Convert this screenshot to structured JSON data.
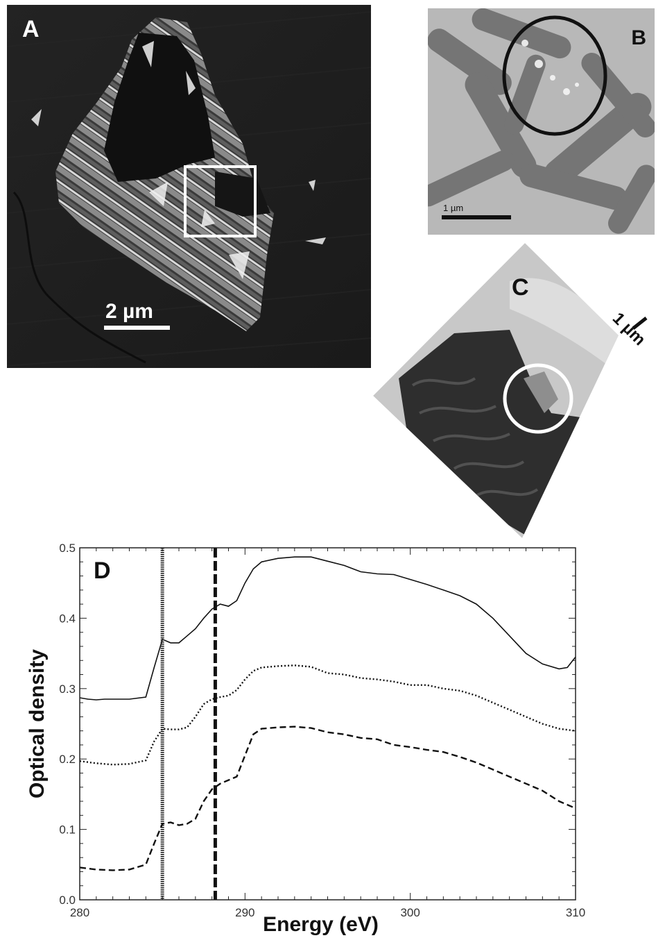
{
  "panels": {
    "a": {
      "label": "A",
      "scalebar": "2 µm"
    },
    "b": {
      "label": "B",
      "scalebar": "1 µm"
    },
    "c": {
      "label": "C",
      "scalebar": "1 µm"
    },
    "d": {
      "label": "D"
    }
  },
  "chart_data": {
    "type": "line",
    "title": "",
    "xlabel": "Energy (eV)",
    "ylabel": "Optical density",
    "xlim": [
      280,
      310
    ],
    "ylim": [
      0.0,
      0.5
    ],
    "xticks": [
      280,
      290,
      300,
      310
    ],
    "yticks": [
      0.0,
      0.1,
      0.2,
      0.3,
      0.4,
      0.5
    ],
    "ytick_labels": [
      "0.0",
      "0.1",
      "0.2",
      "0.3",
      "0.4",
      "0.5"
    ],
    "vertical_lines": [
      {
        "x": 285.0,
        "style": "dotted"
      },
      {
        "x": 288.2,
        "style": "dashed"
      }
    ],
    "series": [
      {
        "style": "solid",
        "x": [
          280,
          280.5,
          281,
          281.5,
          282,
          283,
          284,
          284.5,
          285,
          285.5,
          286,
          286.5,
          287,
          287.5,
          288,
          288.5,
          289,
          289.5,
          290,
          290.5,
          291,
          292,
          293,
          294,
          295,
          296,
          297,
          298,
          299,
          300,
          301,
          302,
          303,
          304,
          305,
          306,
          307,
          308,
          309,
          309.5,
          310
        ],
        "y": [
          0.287,
          0.285,
          0.284,
          0.285,
          0.285,
          0.285,
          0.288,
          0.33,
          0.37,
          0.365,
          0.365,
          0.375,
          0.385,
          0.4,
          0.413,
          0.42,
          0.417,
          0.425,
          0.45,
          0.47,
          0.48,
          0.485,
          0.487,
          0.487,
          0.481,
          0.475,
          0.466,
          0.463,
          0.462,
          0.455,
          0.448,
          0.44,
          0.432,
          0.42,
          0.4,
          0.375,
          0.35,
          0.335,
          0.328,
          0.33,
          0.345
        ]
      },
      {
        "style": "dotted",
        "x": [
          280,
          281,
          282,
          283,
          284,
          284.5,
          285,
          285.5,
          286,
          286.5,
          287,
          287.5,
          288,
          288.5,
          289,
          289.5,
          290,
          290.5,
          291,
          292,
          293,
          294,
          295,
          296,
          297,
          298,
          299,
          300,
          301,
          302,
          303,
          304,
          305,
          306,
          307,
          308,
          309,
          310
        ],
        "y": [
          0.197,
          0.194,
          0.192,
          0.193,
          0.198,
          0.225,
          0.243,
          0.242,
          0.242,
          0.245,
          0.26,
          0.278,
          0.285,
          0.288,
          0.29,
          0.298,
          0.313,
          0.325,
          0.33,
          0.332,
          0.333,
          0.331,
          0.322,
          0.32,
          0.315,
          0.313,
          0.31,
          0.305,
          0.305,
          0.3,
          0.297,
          0.29,
          0.28,
          0.27,
          0.26,
          0.25,
          0.243,
          0.24
        ]
      },
      {
        "style": "dashed",
        "x": [
          280,
          281,
          282,
          283,
          284,
          284.5,
          285,
          285.5,
          286,
          286.5,
          287,
          287.5,
          288,
          288.5,
          289,
          289.5,
          290,
          290.5,
          291,
          292,
          293,
          294,
          295,
          296,
          297,
          298,
          299,
          300,
          301,
          302,
          303,
          304,
          305,
          306,
          307,
          308,
          309,
          310
        ],
        "y": [
          0.046,
          0.043,
          0.042,
          0.043,
          0.05,
          0.08,
          0.108,
          0.11,
          0.106,
          0.108,
          0.115,
          0.14,
          0.157,
          0.165,
          0.17,
          0.175,
          0.205,
          0.235,
          0.243,
          0.245,
          0.246,
          0.244,
          0.238,
          0.235,
          0.23,
          0.228,
          0.22,
          0.217,
          0.213,
          0.21,
          0.203,
          0.195,
          0.185,
          0.175,
          0.165,
          0.155,
          0.14,
          0.13
        ]
      }
    ]
  }
}
